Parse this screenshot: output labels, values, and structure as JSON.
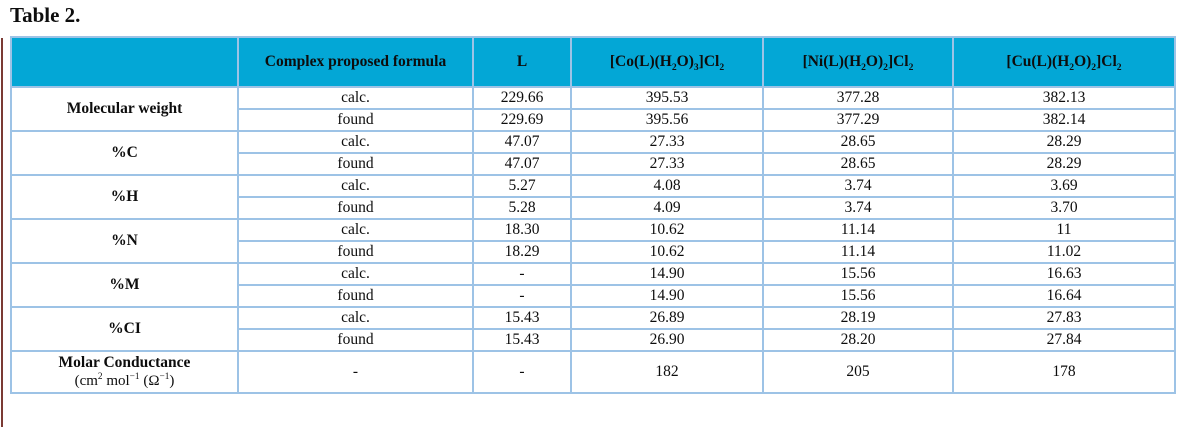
{
  "title": "Table 2.",
  "colors": {
    "header_bg": "#03a7d6",
    "grid_border": "#9dc3e6",
    "text": "#0d0d0d",
    "page_edge_line": "#7b3a34"
  },
  "table": {
    "headers": [
      "",
      "Complex proposed formula",
      "L",
      "[Co(L)(H~2~O)~3~]Cl~2~",
      "[Ni(L)(H~2~O)~2~]Cl~2~",
      "[Cu(L)(H~2~O)~2~]Cl~2~"
    ],
    "groups": [
      {
        "label": "Molecular weight",
        "rows": [
          {
            "type": "calc.",
            "values": [
              "229.66",
              "395.53",
              "377.28",
              "382.13"
            ]
          },
          {
            "type": "found",
            "values": [
              "229.69",
              "395.56",
              "377.29",
              "382.14"
            ]
          }
        ]
      },
      {
        "label": "%C",
        "rows": [
          {
            "type": "calc.",
            "values": [
              "47.07",
              "27.33",
              "28.65",
              "28.29"
            ]
          },
          {
            "type": "found",
            "values": [
              "47.07",
              "27.33",
              "28.65",
              "28.29"
            ]
          }
        ]
      },
      {
        "label": "%H",
        "rows": [
          {
            "type": "calc.",
            "values": [
              "5.27",
              "4.08",
              "3.74",
              "3.69"
            ]
          },
          {
            "type": "found",
            "values": [
              "5.28",
              "4.09",
              "3.74",
              "3.70"
            ]
          }
        ]
      },
      {
        "label": "%N",
        "rows": [
          {
            "type": "calc.",
            "values": [
              "18.30",
              "10.62",
              "11.14",
              "11"
            ]
          },
          {
            "type": "found",
            "values": [
              "18.29",
              "10.62",
              "11.14",
              "11.02"
            ]
          }
        ]
      },
      {
        "label": "%M",
        "rows": [
          {
            "type": "calc.",
            "values": [
              "-",
              "14.90",
              "15.56",
              "16.63"
            ]
          },
          {
            "type": "found",
            "values": [
              "-",
              "14.90",
              "15.56",
              "16.64"
            ]
          }
        ]
      },
      {
        "label": "%CI",
        "rows": [
          {
            "type": "calc.",
            "values": [
              "15.43",
              "26.89",
              "28.19",
              "27.83"
            ]
          },
          {
            "type": "found",
            "values": [
              "15.43",
              "26.90",
              "28.20",
              "27.84"
            ]
          }
        ]
      }
    ],
    "footer_row": {
      "label_line1": "Molar Conductance",
      "label_line2": "(cm^2^ mol^−1^ (Ω^−1^)",
      "values": [
        "-",
        "-",
        "182",
        "205",
        "178"
      ]
    }
  }
}
